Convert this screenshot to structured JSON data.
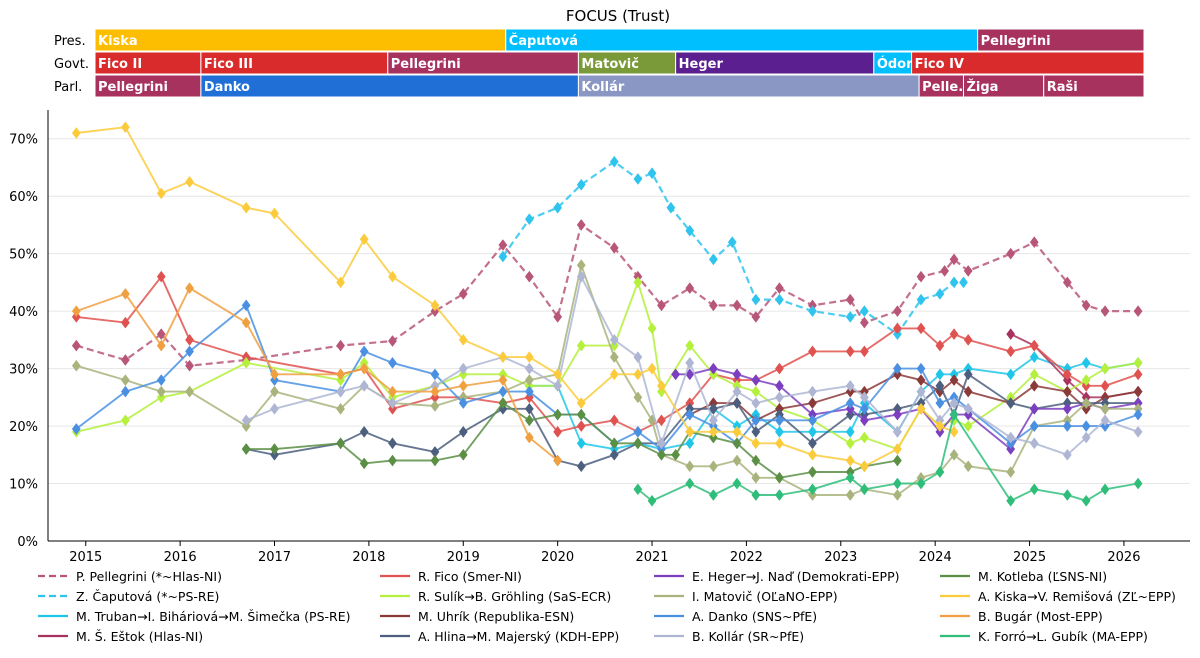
{
  "chart_data": {
    "type": "line",
    "title": "FOCUS (Trust)",
    "ylim": [
      0,
      75
    ],
    "xlim": [
      2014.6,
      2026.7
    ],
    "y_ticks": [
      0,
      10,
      20,
      30,
      40,
      50,
      60,
      70
    ],
    "y_tick_labels": [
      "0%",
      "10%",
      "20%",
      "30%",
      "40%",
      "50%",
      "60%",
      "70%"
    ],
    "x_ticks": [
      2015,
      2016,
      2017,
      2018,
      2019,
      2020,
      2021,
      2022,
      2023,
      2024,
      2025,
      2026
    ],
    "x_tick_labels": [
      "2015",
      "2016",
      "2017",
      "2018",
      "2019",
      "2020",
      "2021",
      "2022",
      "2023",
      "2024",
      "2025",
      "2026"
    ],
    "grid": "horizontal",
    "legend_position": "bottom",
    "timeline": [
      {
        "label": "Pres.",
        "segments": [
          {
            "name": "Kiska",
            "start": 2014.6,
            "end": 2019.45,
            "color": "#FDBE02"
          },
          {
            "name": "Čaputová",
            "start": 2019.45,
            "end": 2024.45,
            "color": "#00BFFF"
          },
          {
            "name": "Pellegrini",
            "start": 2024.45,
            "end": 2026.7,
            "color": "#A8325E"
          }
        ]
      },
      {
        "label": "Govt.",
        "segments": [
          {
            "name": "Fico II",
            "start": 2014.6,
            "end": 2016.22,
            "color": "#D92B2B"
          },
          {
            "name": "Fico III",
            "start": 2016.22,
            "end": 2018.2,
            "color": "#D92B2B"
          },
          {
            "name": "Pellegrini",
            "start": 2018.2,
            "end": 2020.22,
            "color": "#A8325E"
          },
          {
            "name": "Matovič",
            "start": 2020.22,
            "end": 2021.25,
            "color": "#7A9A3A"
          },
          {
            "name": "Heger",
            "start": 2021.25,
            "end": 2023.35,
            "color": "#5B1F8F"
          },
          {
            "name": "Ódor",
            "start": 2023.35,
            "end": 2023.75,
            "color": "#00BFFF"
          },
          {
            "name": "Fico IV",
            "start": 2023.75,
            "end": 2026.7,
            "color": "#D92B2B"
          }
        ]
      },
      {
        "label": "Parl.",
        "segments": [
          {
            "name": "Pellegrini",
            "start": 2014.6,
            "end": 2016.22,
            "color": "#A8325E"
          },
          {
            "name": "Danko",
            "start": 2016.22,
            "end": 2020.22,
            "color": "#1F6FD6"
          },
          {
            "name": "Kollár",
            "start": 2020.22,
            "end": 2023.83,
            "color": "#8A97C4"
          },
          {
            "name": "Pelle.",
            "start": 2023.83,
            "end": 2024.3,
            "color": "#A8325E"
          },
          {
            "name": "Žiga",
            "start": 2024.3,
            "end": 2025.15,
            "color": "#A8325E"
          },
          {
            "name": "Raši",
            "start": 2025.15,
            "end": 2026.7,
            "color": "#A8325E"
          }
        ]
      }
    ],
    "series": [
      {
        "name": "P. Pellegrini (*~Hlas-NI)",
        "color": "#B8567A",
        "dash": true,
        "x": [
          2014.9,
          2015.42,
          2015.8,
          2016.1,
          2016.7,
          2017.7,
          2018.25,
          2018.7,
          2019.0,
          2019.42,
          2019.7,
          2020.0,
          2020.25,
          2020.6,
          2020.85,
          2021.1,
          2021.4,
          2021.65,
          2021.9,
          2022.1,
          2022.35,
          2022.7,
          2023.1,
          2023.25,
          2023.6,
          2023.85,
          2024.1,
          2024.2,
          2024.35,
          2024.8,
          2025.05,
          2025.4,
          2025.6,
          2025.8,
          2026.15
        ],
        "y": [
          34,
          31.5,
          36,
          30.5,
          31.5,
          34,
          34.8,
          40,
          43,
          51.5,
          46,
          39,
          55,
          51,
          46,
          41,
          44,
          41,
          41,
          39,
          44,
          41,
          42,
          38,
          40,
          46,
          47,
          49,
          47,
          50,
          52,
          45,
          41,
          40,
          40
        ]
      },
      {
        "name": "Z. Čaputová (*~PS-RE)",
        "color": "#2FC4EE",
        "dash": true,
        "x": [
          2019.42,
          2019.7,
          2020.0,
          2020.25,
          2020.6,
          2020.85,
          2021.0,
          2021.2,
          2021.4,
          2021.65,
          2021.85,
          2022.1,
          2022.35,
          2022.7,
          2023.1,
          2023.25,
          2023.6,
          2023.85,
          2024.05,
          2024.2,
          2024.3
        ],
        "y": [
          49.5,
          56,
          58,
          62,
          66,
          63,
          64,
          58,
          54,
          49,
          52,
          42,
          42,
          40,
          39,
          40,
          36,
          42,
          43,
          45,
          45
        ]
      },
      {
        "name": "M. Truban→I. Biháriová→M. Šimečka (PS-RE)",
        "color": "#1FC6E8",
        "dash": false,
        "x": [
          2019.7,
          2020.0,
          2020.25,
          2020.6,
          2020.85,
          2021.1,
          2021.4,
          2021.65,
          2021.9,
          2022.1,
          2022.35,
          2022.7,
          2023.1,
          2023.25,
          2023.6,
          2023.85,
          2024.05,
          2024.2,
          2024.35,
          2024.8,
          2025.05,
          2025.4,
          2025.6,
          2025.8,
          2026.15
        ],
        "y": [
          27,
          27,
          17,
          16,
          17,
          16,
          17,
          23,
          20,
          22,
          19,
          19,
          19,
          24,
          19,
          26,
          29,
          29,
          30,
          29,
          32,
          30,
          31,
          30,
          31
        ]
      },
      {
        "name": "M. Š. Eštok (Hlas-NI)",
        "color": "#A8325E",
        "dash": false,
        "x": [
          2024.8,
          2025.05,
          2025.4,
          2025.6,
          2025.8,
          2026.15
        ],
        "y": [
          36,
          34,
          28,
          25,
          25,
          26
        ]
      },
      {
        "name": "R. Fico (Smer-NI)",
        "color": "#E0524F",
        "dash": false,
        "x": [
          2014.9,
          2015.42,
          2015.8,
          2016.1,
          2016.7,
          2017.7,
          2017.95,
          2018.25,
          2018.7,
          2019.0,
          2019.42,
          2019.7,
          2020.0,
          2020.25,
          2020.6,
          2020.85,
          2021.1,
          2021.4,
          2021.65,
          2021.9,
          2022.1,
          2022.35,
          2022.7,
          2023.1,
          2023.25,
          2023.6,
          2023.85,
          2024.05,
          2024.2,
          2024.35,
          2024.8,
          2025.05,
          2025.4,
          2025.6,
          2025.8,
          2026.15
        ],
        "y": [
          39,
          38,
          46,
          35,
          32,
          29,
          30,
          23,
          25,
          25,
          24,
          25,
          19,
          20,
          21,
          19,
          21,
          24,
          29,
          28,
          28,
          30,
          33,
          33,
          33,
          37,
          37,
          34,
          36,
          35,
          33,
          34,
          29,
          27,
          27,
          29
        ]
      },
      {
        "name": "R. Sulík→B. Gröhling (SaS-ECR)",
        "color": "#B4F03C",
        "dash": false,
        "x": [
          2014.9,
          2015.42,
          2015.8,
          2016.1,
          2016.7,
          2017.7,
          2017.95,
          2018.25,
          2018.7,
          2019.0,
          2019.42,
          2019.7,
          2020.0,
          2020.25,
          2020.6,
          2020.85,
          2021.0,
          2021.1,
          2021.4,
          2021.65,
          2021.9,
          2022.1,
          2022.35,
          2022.7,
          2023.1,
          2023.25,
          2023.6,
          2023.85,
          2024.05,
          2024.2,
          2024.35,
          2024.8,
          2025.05,
          2025.4,
          2025.6,
          2025.8,
          2026.15
        ],
        "y": [
          19,
          21,
          25,
          26,
          31,
          28,
          31,
          25,
          27,
          29,
          29,
          27,
          27,
          34,
          34,
          45,
          37,
          26,
          34,
          29,
          27,
          26,
          23,
          21,
          17,
          18,
          16,
          23,
          20,
          21,
          20,
          25,
          29,
          26,
          28,
          30,
          31
        ]
      },
      {
        "name": "M. Uhrík (Republika-ESN)",
        "color": "#8B3A3A",
        "dash": false,
        "x": [
          2021.4,
          2021.65,
          2021.9,
          2022.1,
          2022.35,
          2022.7,
          2023.1,
          2023.25,
          2023.6,
          2023.85,
          2024.05,
          2024.2,
          2024.35,
          2024.8,
          2025.05,
          2025.4,
          2025.6,
          2025.8,
          2026.15
        ],
        "y": [
          22,
          24,
          24,
          21,
          23,
          24,
          26,
          26,
          29,
          28,
          26,
          28,
          26,
          24,
          27,
          26,
          23,
          25,
          26
        ]
      },
      {
        "name": "A. Hlina→M. Majerský (KDH-EPP)",
        "color": "#4C5F7E",
        "dash": false,
        "x": [
          2016.7,
          2017.0,
          2017.7,
          2017.95,
          2018.25,
          2018.7,
          2019.0,
          2019.42,
          2019.7,
          2020.0,
          2020.25,
          2020.6,
          2020.85,
          2021.1,
          2021.4,
          2021.65,
          2021.9,
          2022.1,
          2022.35,
          2022.7,
          2023.1,
          2023.25,
          2023.6,
          2023.85,
          2024.05,
          2024.2,
          2024.35,
          2024.8,
          2025.05,
          2025.4,
          2025.6,
          2025.8,
          2026.15
        ],
        "y": [
          16,
          15,
          17,
          19,
          17,
          15.5,
          19,
          23,
          23,
          14,
          13,
          15,
          17,
          17,
          23,
          23,
          24,
          19,
          22,
          17,
          22,
          22,
          23,
          24,
          27,
          22,
          29,
          24,
          23,
          24,
          24,
          24,
          24
        ]
      },
      {
        "name": "E. Heger→J. Naď (Demokrati-EPP)",
        "color": "#7B3FBF",
        "dash": false,
        "x": [
          2021.25,
          2021.4,
          2021.65,
          2021.9,
          2022.1,
          2022.35,
          2022.7,
          2023.1,
          2023.25,
          2023.6,
          2023.85,
          2024.05,
          2024.2,
          2024.35,
          2024.8,
          2025.05,
          2025.4,
          2025.6,
          2025.8,
          2026.15
        ],
        "y": [
          29,
          29,
          30,
          29,
          28,
          27,
          22,
          23,
          21,
          22,
          23,
          19,
          22,
          22,
          16,
          23,
          23,
          24,
          23,
          24
        ]
      },
      {
        "name": "I. Matovič (OĽaNO-EPP)",
        "color": "#A8B47C",
        "dash": false,
        "x": [
          2014.9,
          2015.42,
          2015.8,
          2016.1,
          2016.7,
          2017.0,
          2017.7,
          2017.95,
          2018.25,
          2018.7,
          2019.0,
          2019.42,
          2019.7,
          2020.0,
          2020.25,
          2020.6,
          2020.85,
          2021.0,
          2021.1,
          2021.4,
          2021.65,
          2021.9,
          2022.1,
          2022.35,
          2022.7,
          2023.1,
          2023.25,
          2023.6,
          2023.85,
          2024.05,
          2024.2,
          2024.35,
          2024.8,
          2025.05,
          2025.4,
          2025.6,
          2025.8,
          2026.15
        ],
        "y": [
          30.5,
          28,
          26,
          26,
          20,
          26,
          23,
          27,
          24,
          23.5,
          25,
          26,
          28,
          29,
          48,
          32,
          25,
          21,
          15,
          13,
          13,
          14,
          11,
          11,
          8,
          8,
          9,
          8,
          11,
          12,
          15,
          13,
          12,
          20,
          21,
          24,
          23,
          23
        ]
      },
      {
        "name": "A. Danko (SNS~PfE)",
        "color": "#4A90E2",
        "dash": false,
        "x": [
          2014.9,
          2015.42,
          2015.8,
          2016.1,
          2016.7,
          2017.0,
          2017.7,
          2017.95,
          2018.25,
          2018.7,
          2019.0,
          2019.42,
          2019.7,
          2020.0,
          2020.25,
          2020.6,
          2020.85,
          2021.1,
          2021.4,
          2021.65,
          2021.9,
          2022.1,
          2022.35,
          2022.7,
          2023.1,
          2023.25,
          2023.6,
          2023.85,
          2024.05,
          2024.2,
          2024.35,
          2024.8,
          2025.05,
          2025.4,
          2025.6,
          2025.8,
          2026.15
        ],
        "y": [
          19.5,
          26,
          28,
          33,
          41,
          28,
          26,
          33,
          31,
          29,
          24,
          26,
          26,
          22,
          22,
          17,
          19,
          16,
          22,
          20,
          17,
          21,
          21,
          21,
          24,
          23,
          30,
          30,
          24,
          25,
          23,
          17,
          20,
          20,
          20,
          20,
          22
        ]
      },
      {
        "name": "B. Kollár (SR~PfE)",
        "color": "#AEB6D4",
        "dash": false,
        "x": [
          2016.7,
          2017.0,
          2017.7,
          2017.95,
          2018.25,
          2018.7,
          2019.0,
          2019.42,
          2019.7,
          2020.0,
          2020.25,
          2020.6,
          2020.85,
          2021.1,
          2021.4,
          2021.65,
          2021.9,
          2022.1,
          2022.35,
          2022.7,
          2023.1,
          2023.25,
          2023.6,
          2023.85,
          2024.05,
          2024.2,
          2024.35,
          2024.8,
          2025.05,
          2025.4,
          2025.6,
          2025.8,
          2026.15
        ],
        "y": [
          21,
          23,
          26,
          27,
          24,
          27,
          30,
          32,
          30,
          27,
          46,
          35,
          32,
          17,
          31,
          21,
          26,
          24,
          25,
          26,
          27,
          25,
          19,
          26,
          21,
          24,
          23,
          18,
          17,
          15,
          18,
          21,
          19
        ]
      },
      {
        "name": "M. Kotleba (ĽSNS-NI)",
        "color": "#5A8F44",
        "dash": false,
        "x": [
          2016.7,
          2017.0,
          2017.7,
          2017.95,
          2018.25,
          2018.7,
          2019.0,
          2019.42,
          2019.7,
          2020.0,
          2020.25,
          2020.6,
          2020.85,
          2021.1,
          2021.25,
          2021.4,
          2021.65,
          2021.9,
          2022.1,
          2022.35,
          2022.7,
          2023.1,
          2023.25,
          2023.6
        ],
        "y": [
          16,
          16,
          17,
          13.5,
          14,
          14,
          15,
          24,
          21,
          22,
          22,
          17,
          17,
          15,
          15,
          19,
          18,
          17,
          14,
          11,
          12,
          12,
          13,
          14
        ]
      },
      {
        "name": "A. Kiska→V. Remišová (ZĽ~EPP)",
        "color": "#FBCB3C",
        "dash": false,
        "x": [
          2014.9,
          2015.42,
          2015.8,
          2016.1,
          2016.7,
          2017.0,
          2017.7,
          2017.95,
          2018.25,
          2018.7,
          2019.0,
          2019.42,
          2019.7,
          2020.0,
          2020.25,
          2020.6,
          2020.85,
          2021.0,
          2021.1,
          2021.4,
          2021.65,
          2021.9,
          2022.1,
          2022.35,
          2022.7,
          2023.1,
          2023.25,
          2023.6,
          2023.85,
          2024.05,
          2024.2
        ],
        "y": [
          71,
          72,
          60.5,
          62.5,
          58,
          57,
          45,
          52.5,
          46,
          41,
          35,
          32,
          32,
          29,
          24,
          29,
          29,
          30,
          27,
          19,
          19,
          19,
          17,
          17,
          15,
          14,
          13,
          16,
          23,
          20,
          19
        ]
      },
      {
        "name": "B. Bugár (Most-EPP)",
        "color": "#F0A040",
        "dash": false,
        "x": [
          2014.9,
          2015.42,
          2015.8,
          2016.1,
          2016.7,
          2017.0,
          2017.7,
          2017.95,
          2018.25,
          2018.7,
          2019.0,
          2019.42,
          2019.7,
          2020.0
        ],
        "y": [
          40,
          43,
          34,
          44,
          38,
          29,
          29,
          30,
          26,
          26,
          27,
          28,
          18,
          14
        ]
      },
      {
        "name": "K. Forró→L. Gubík (MA-EPP)",
        "color": "#2FBE7A",
        "dash": false,
        "x": [
          2020.85,
          2021.0,
          2021.4,
          2021.65,
          2021.9,
          2022.1,
          2022.35,
          2022.7,
          2023.1,
          2023.25,
          2023.6,
          2023.85,
          2024.05,
          2024.2,
          2024.8,
          2025.05,
          2025.4,
          2025.6,
          2025.8,
          2026.15
        ],
        "y": [
          9,
          7,
          10,
          8,
          10,
          8,
          8,
          9,
          11,
          9,
          10,
          10,
          12,
          22,
          7,
          9,
          8,
          7,
          9,
          10
        ]
      }
    ]
  }
}
